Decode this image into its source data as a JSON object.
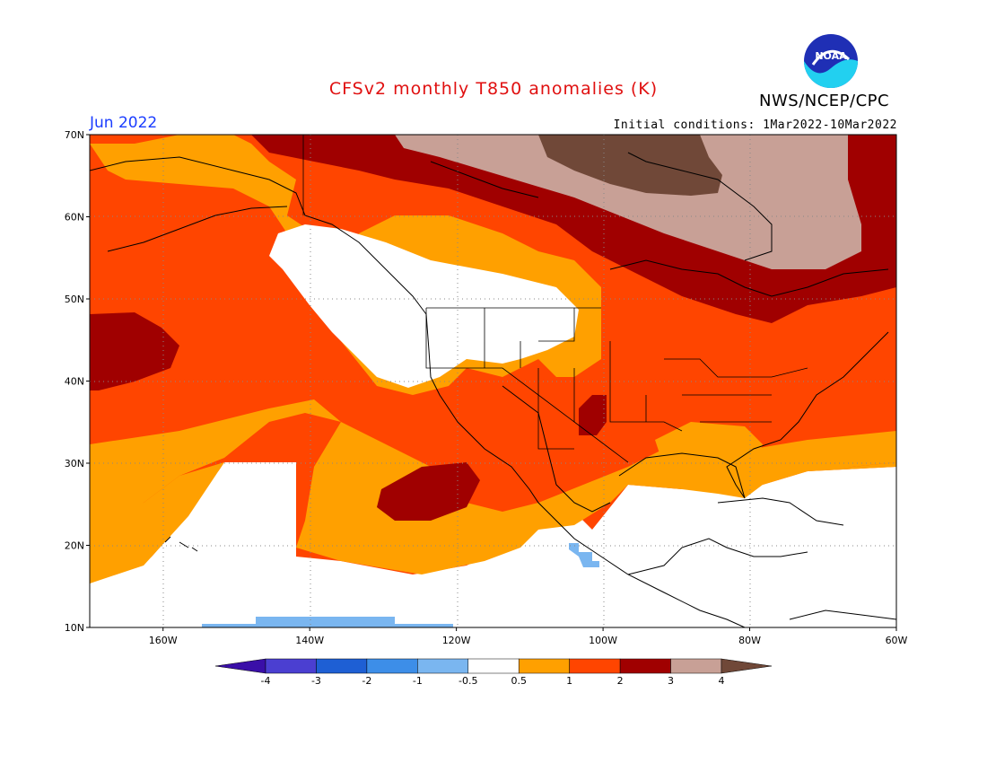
{
  "title": "CFSv2 monthly T850 anomalies (K)",
  "agency": "NWS/NCEP/CPC",
  "logo_text": "NOAA",
  "valid_month": "Jun 2022",
  "initial_conditions": "Initial conditions: 1Mar2022-10Mar2022",
  "lat_labels": [
    "70N",
    "60N",
    "50N",
    "40N",
    "30N",
    "20N",
    "10N"
  ],
  "lon_labels": [
    "160W",
    "140W",
    "120W",
    "100W",
    "80W",
    "60W"
  ],
  "lat_values": [
    70,
    60,
    50,
    40,
    30,
    20,
    10
  ],
  "lon_values": [
    -160,
    -140,
    -120,
    -100,
    -80,
    -60
  ],
  "colorbar": {
    "labels": [
      "-4",
      "-3",
      "-2",
      "-1",
      "-0.5",
      "0.5",
      "1",
      "2",
      "3",
      "4"
    ],
    "colors": [
      "#3a0fa8",
      "#4b3fd1",
      "#1e5fd4",
      "#3d8ee8",
      "#7ab6f0",
      "#ffffff",
      "#ffa000",
      "#ff4500",
      "#a00000",
      "#c8a096",
      "#704838"
    ]
  },
  "regions": {
    "cold_region_1": "-1 to -0.5 K strip near 10N, 155W-120W",
    "notes": ""
  }
}
